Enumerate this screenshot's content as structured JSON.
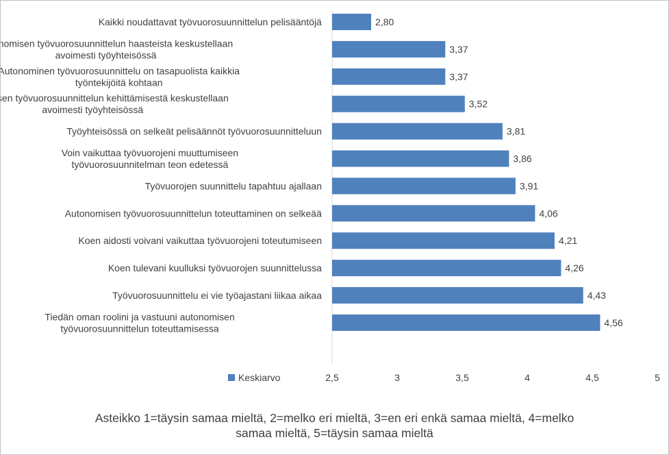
{
  "chart_data": {
    "type": "bar",
    "orientation": "horizontal",
    "categories": [
      [
        "Kaikki noudattavat työvuorosuunnittelun pelisääntöjä"
      ],
      [
        "Autonomisen työvuorosuunnittelun haasteista keskustellaan",
        "avoimesti työyhteisössä"
      ],
      [
        "Autonominen työvuorosuunnittelu on tasapuolista kaikkia",
        "työntekijöitä kohtaan"
      ],
      [
        "Autonomisen työvuorosuunnittelun kehittämisestä keskustellaan",
        "avoimesti työyhteisössä"
      ],
      [
        "Työyhteisössä on selkeät pelisäännöt työvuorosuunnitteluun"
      ],
      [
        "Voin vaikuttaa työvuorojeni muuttumiseen",
        "työvuorosuunnitelman teon edetessä"
      ],
      [
        "Työvuorojen suunnittelu tapahtuu ajallaan"
      ],
      [
        "Autonomisen työvuorosuunnittelun toteuttaminen on selkeää"
      ],
      [
        "Koen aidosti voivani vaikuttaa työvuorojeni toteutumiseen"
      ],
      [
        "Koen tulevani kuulluksi työvuorojen suunnittelussa"
      ],
      [
        "Työvuorosuunnittelu ei vie työajastani liikaa aikaa"
      ],
      [
        "Tiedän oman roolini ja vastuuni autonomisen",
        "työvuorosuunnittelun toteuttamisessa"
      ]
    ],
    "series": [
      {
        "name": "Keskiarvo",
        "values": [
          2.8,
          3.37,
          3.37,
          3.52,
          3.81,
          3.86,
          3.91,
          4.06,
          4.21,
          4.26,
          4.43,
          4.56
        ],
        "labels": [
          "2,80",
          "3,37",
          "3,37",
          "3,52",
          "3,81",
          "3,86",
          "3,91",
          "4,06",
          "4,21",
          "4,26",
          "4,43",
          "4,56"
        ]
      }
    ],
    "xlim": [
      2.5,
      5
    ],
    "xticks": [
      2.5,
      3,
      3.5,
      4,
      4.5,
      5
    ],
    "xtick_labels": [
      "2,5",
      "3",
      "3,5",
      "4",
      "4,5",
      "5"
    ],
    "bar_color": "#4f81bd",
    "grid": false,
    "legend_position": "bottom-left",
    "footnote": [
      "Asteikko 1=täysin samaa mieltä, 2=melko eri mieltä, 3=en eri enkä samaa mieltä, 4=melko",
      "samaa mieltä, 5=täysin samaa mieltä"
    ]
  }
}
